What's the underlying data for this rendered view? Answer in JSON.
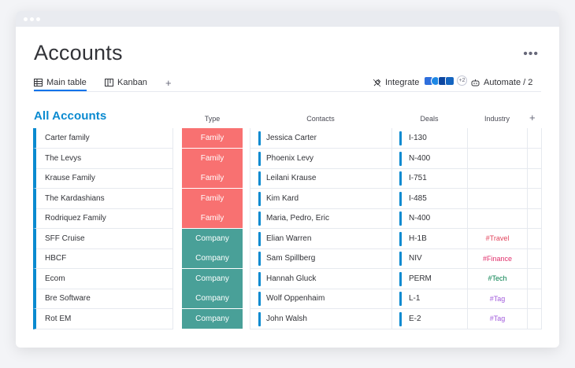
{
  "page": {
    "title": "Accounts"
  },
  "tabs": [
    {
      "label": "Main table",
      "icon": "table-icon"
    },
    {
      "label": "Kanban",
      "icon": "kanban-icon"
    }
  ],
  "toolbar": {
    "add_tab": "+",
    "integrate_label": "Integrate",
    "integrations_more": "+2",
    "automate_label": "Automate / 2"
  },
  "group": {
    "title": "All Accounts",
    "columns": {
      "type": "Type",
      "contacts": "Contacts",
      "deals": "Deals",
      "industry": "Industry",
      "add": "+"
    }
  },
  "rows": [
    {
      "name": "Carter family",
      "type": "Family",
      "contact": "Jessica Carter",
      "deal": "I-130",
      "industry": ""
    },
    {
      "name": "The Levys",
      "type": "Family",
      "contact": "Phoenix Levy",
      "deal": "N-400",
      "industry": ""
    },
    {
      "name": "Krause Family",
      "type": "Family",
      "contact": "Leilani Krause",
      "deal": "I-751",
      "industry": ""
    },
    {
      "name": "The Kardashians",
      "type": "Family",
      "contact": "Kim Kard",
      "deal": "I-485",
      "industry": ""
    },
    {
      "name": "Rodriquez Family",
      "type": "Family",
      "contact": "Maria, Pedro, Eric",
      "deal": "N-400",
      "industry": ""
    },
    {
      "name": "SFF Cruise",
      "type": "Company",
      "contact": "Elian Warren",
      "deal": "H-1B",
      "industry": "#Travel"
    },
    {
      "name": "HBCF",
      "type": "Company",
      "contact": "Sam Spillberg",
      "deal": "NIV",
      "industry": "#Finance"
    },
    {
      "name": "Ecom",
      "type": "Company",
      "contact": "Hannah Gluck",
      "deal": "PERM",
      "industry": "#Tech"
    },
    {
      "name": "Bre Software",
      "type": "Company",
      "contact": "Wolf Oppenhaim",
      "deal": "L-1",
      "industry": "#Tag"
    },
    {
      "name": "Rot EM",
      "type": "Company",
      "contact": "John Walsh",
      "deal": "E-2",
      "industry": "#Tag"
    }
  ],
  "colors": {
    "accent": "#0a8ad0",
    "family": "#f87171",
    "company": "#49a098",
    "travel": "#e2445c",
    "finance": "#e1306c",
    "tech": "#037f4c",
    "tag": "#a25ddc"
  }
}
